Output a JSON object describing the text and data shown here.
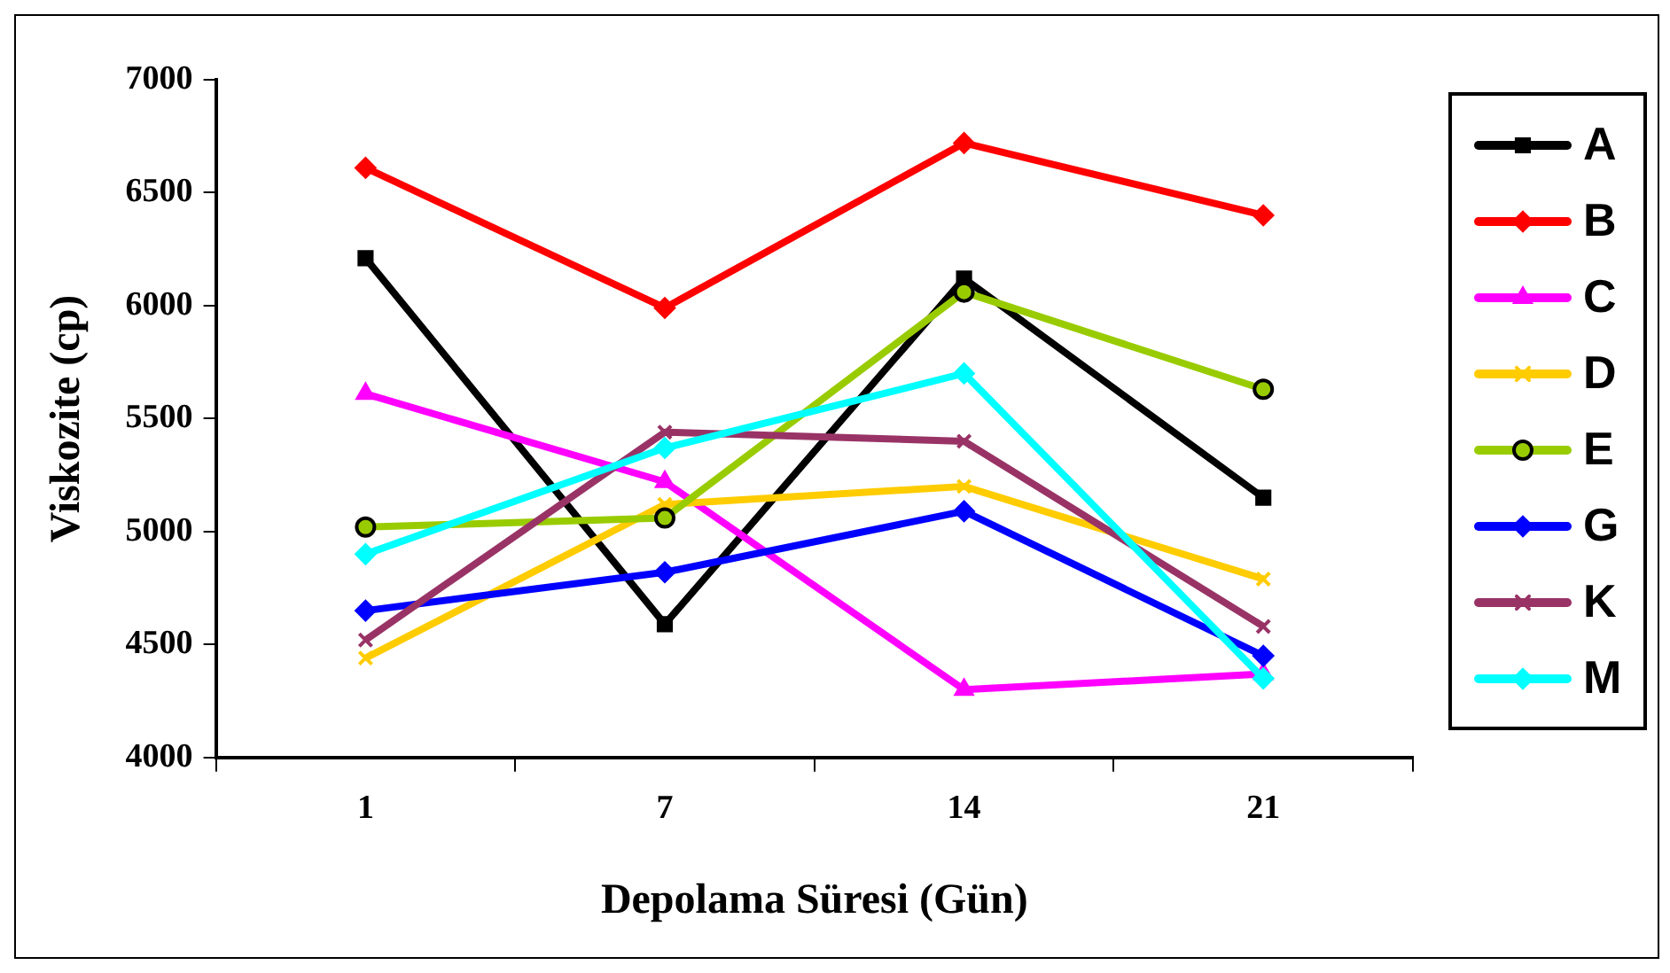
{
  "chart_data": {
    "type": "line",
    "xlabel": "Depolama Süresi (Gün)",
    "ylabel": "Viskozite (cp)",
    "categories": [
      "1",
      "7",
      "14",
      "21"
    ],
    "ylim": [
      4000,
      7000
    ],
    "yticks": [
      4000,
      4500,
      5000,
      5500,
      6000,
      6500,
      7000
    ],
    "grid": false,
    "legend": "right",
    "line_style": "solid",
    "series": [
      {
        "name": "A",
        "color": "#000000",
        "marker": "square",
        "values": [
          6210,
          4590,
          6120,
          5150
        ]
      },
      {
        "name": "B",
        "color": "#ff0000",
        "marker": "diamond",
        "values": [
          6610,
          5990,
          6720,
          6400
        ]
      },
      {
        "name": "C",
        "color": "#ff00ff",
        "marker": "triangle",
        "values": [
          5610,
          5220,
          4300,
          4370
        ]
      },
      {
        "name": "D",
        "color": "#ffcc00",
        "marker": "cross",
        "values": [
          4440,
          5120,
          5200,
          4790
        ]
      },
      {
        "name": "E",
        "color": "#99cc00",
        "marker": "circle",
        "values": [
          5020,
          5060,
          6060,
          5630
        ]
      },
      {
        "name": "G",
        "color": "#0000ff",
        "marker": "diamond",
        "values": [
          4650,
          4820,
          5090,
          4450
        ]
      },
      {
        "name": "K",
        "color": "#993366",
        "marker": "cross",
        "values": [
          4520,
          5440,
          5400,
          4580
        ]
      },
      {
        "name": "M",
        "color": "#00ffff",
        "marker": "diamond",
        "values": [
          4900,
          5370,
          5700,
          4350
        ]
      }
    ]
  }
}
